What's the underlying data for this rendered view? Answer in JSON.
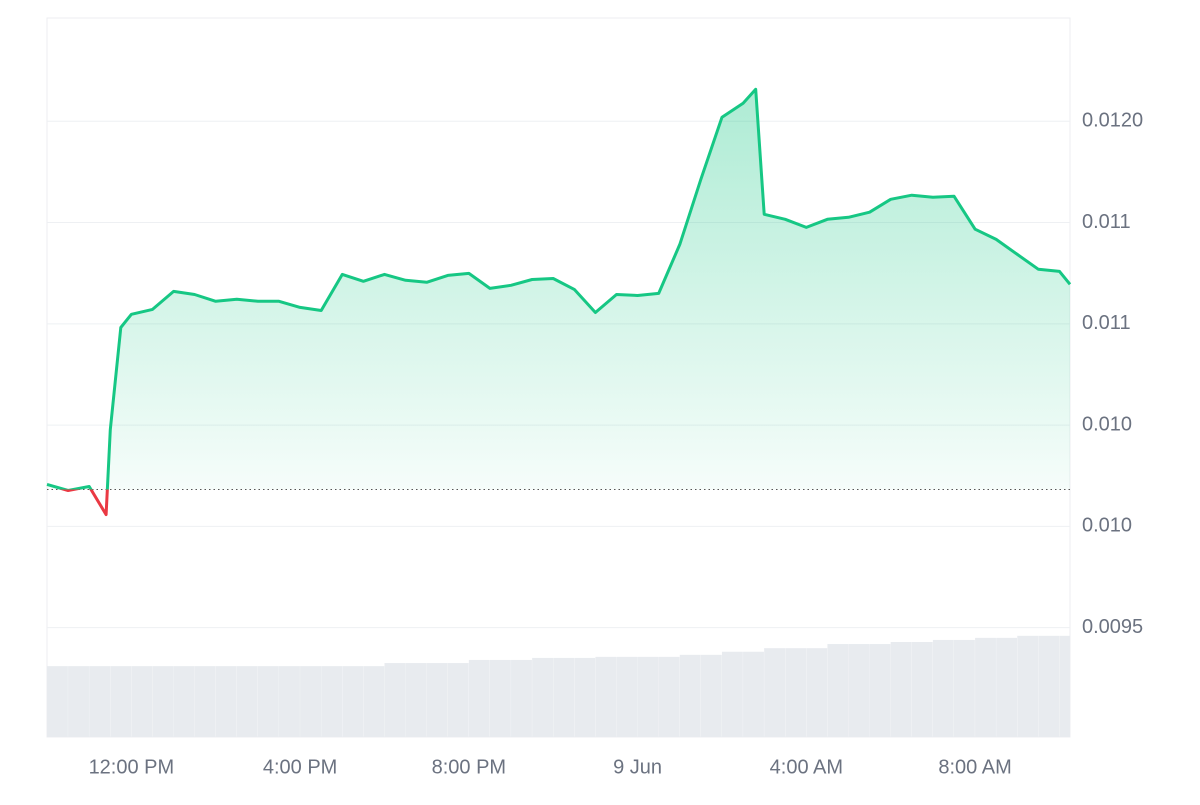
{
  "chart_data": {
    "type": "area",
    "x": [
      10,
      10.5,
      11,
      11.4,
      11.5,
      11.75,
      12,
      12.5,
      13,
      13.5,
      14,
      14.5,
      15,
      15.5,
      16,
      16.5,
      17,
      17.5,
      18,
      18.5,
      19,
      19.5,
      20,
      20.5,
      21,
      21.5,
      22,
      22.5,
      23,
      23.5,
      24,
      24.5,
      25,
      25.5,
      26,
      26.5,
      26.8,
      27,
      27.5,
      28,
      28.5,
      29,
      29.5,
      30,
      30.5,
      31,
      31.5,
      32,
      32.5,
      33,
      33.5,
      34,
      34.25
    ],
    "values": [
      0.010207,
      0.010177,
      0.010197,
      0.010058,
      0.010478,
      0.010982,
      0.011047,
      0.011071,
      0.01116,
      0.011145,
      0.011111,
      0.011121,
      0.011111,
      0.011111,
      0.011081,
      0.011066,
      0.011244,
      0.01121,
      0.011244,
      0.011215,
      0.011205,
      0.011239,
      0.011249,
      0.011175,
      0.01119,
      0.011219,
      0.011224,
      0.01117,
      0.011056,
      0.011145,
      0.01114,
      0.01115,
      0.011392,
      0.011714,
      0.01202,
      0.012089,
      0.012158,
      0.011541,
      0.011516,
      0.011476,
      0.011516,
      0.011526,
      0.011551,
      0.011615,
      0.011635,
      0.011625,
      0.01163,
      0.011467,
      0.011417,
      0.011343,
      0.011269,
      0.011259,
      0.011195
    ],
    "baseline": 0.010182,
    "up_color": "#16c784",
    "down_color": "#ea3943",
    "volume": {
      "color": "#e8ebef",
      "x": [
        10,
        10.5,
        11,
        11.5,
        12,
        12.5,
        13,
        13.5,
        14,
        14.5,
        15,
        15.5,
        16,
        16.5,
        17,
        17.5,
        18,
        18.5,
        19,
        19.5,
        20,
        20.5,
        21,
        21.5,
        22,
        22.5,
        23,
        23.5,
        24,
        24.5,
        25,
        25.5,
        26,
        26.5,
        27,
        27.5,
        28,
        28.5,
        29,
        29.5,
        30,
        30.5,
        31,
        31.5,
        32,
        32.5,
        33,
        33.5,
        34
      ],
      "values": [
        13.8,
        13.8,
        13.8,
        13.8,
        13.8,
        13.8,
        13.8,
        13.8,
        13.8,
        13.8,
        13.8,
        13.8,
        13.8,
        13.8,
        13.8,
        13.8,
        14.4,
        14.4,
        14.4,
        14.4,
        15.0,
        15.0,
        15.0,
        15.4,
        15.4,
        15.4,
        15.6,
        15.6,
        15.6,
        15.6,
        16.0,
        16.0,
        16.6,
        16.6,
        17.3,
        17.3,
        17.3,
        18.1,
        18.1,
        18.1,
        18.5,
        18.5,
        18.9,
        18.9,
        19.3,
        19.3,
        19.7,
        19.7,
        19.7
      ]
    },
    "xlim": [
      10,
      34.25
    ],
    "ylim": [
      0.00896,
      0.01251
    ],
    "y2lim": [
      0,
      140
    ],
    "yticks": [
      {
        "value": 0.0095,
        "label": "0.0095"
      },
      {
        "value": 0.01,
        "label": "0.010"
      },
      {
        "value": 0.0105,
        "label": "0.010"
      },
      0.011,
      {
        "value": 0.0115,
        "label": "0.011"
      },
      {
        "value": 0.012,
        "label": "0.0120"
      }
    ],
    "xticks": [
      {
        "value": 12,
        "label": "12:00 PM"
      },
      {
        "value": 16,
        "label": "4:00 PM"
      },
      {
        "value": 20,
        "label": "8:00 PM"
      },
      {
        "value": 24,
        "label": "9 Jun"
      },
      {
        "value": 28,
        "label": "4:00 AM"
      },
      {
        "value": 32,
        "label": "8:00 AM"
      }
    ],
    "grid": true
  }
}
